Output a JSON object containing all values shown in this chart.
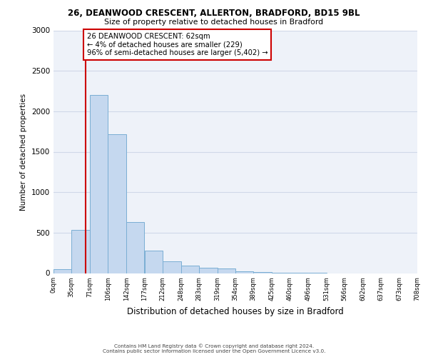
{
  "title1": "26, DEANWOOD CRESCENT, ALLERTON, BRADFORD, BD15 9BL",
  "title2": "Size of property relative to detached houses in Bradford",
  "xlabel": "Distribution of detached houses by size in Bradford",
  "ylabel": "Number of detached properties",
  "footer1": "Contains HM Land Registry data © Crown copyright and database right 2024.",
  "footer2": "Contains public sector information licensed under the Open Government Licence v3.0.",
  "annotation_lines": [
    "26 DEANWOOD CRESCENT: 62sqm",
    "← 4% of detached houses are smaller (229)",
    "96% of semi-detached houses are larger (5,402) →"
  ],
  "property_size": 62,
  "bin_edges": [
    0,
    35,
    71,
    106,
    142,
    177,
    212,
    248,
    283,
    319,
    354,
    389,
    425,
    460,
    496,
    531,
    566,
    602,
    637,
    673,
    708
  ],
  "bar_heights": [
    50,
    530,
    2200,
    1720,
    630,
    280,
    145,
    90,
    65,
    55,
    25,
    12,
    8,
    5,
    3,
    0,
    0,
    0,
    0,
    0
  ],
  "bar_color": "#c5d8ef",
  "bar_edge_color": "#7aaed4",
  "vline_color": "#cc0000",
  "annotation_box_color": "white",
  "annotation_box_edge_color": "#cc0000",
  "ylim": [
    0,
    3000
  ],
  "background_color": "#eef2f9",
  "grid_color": "#d0d8e8"
}
